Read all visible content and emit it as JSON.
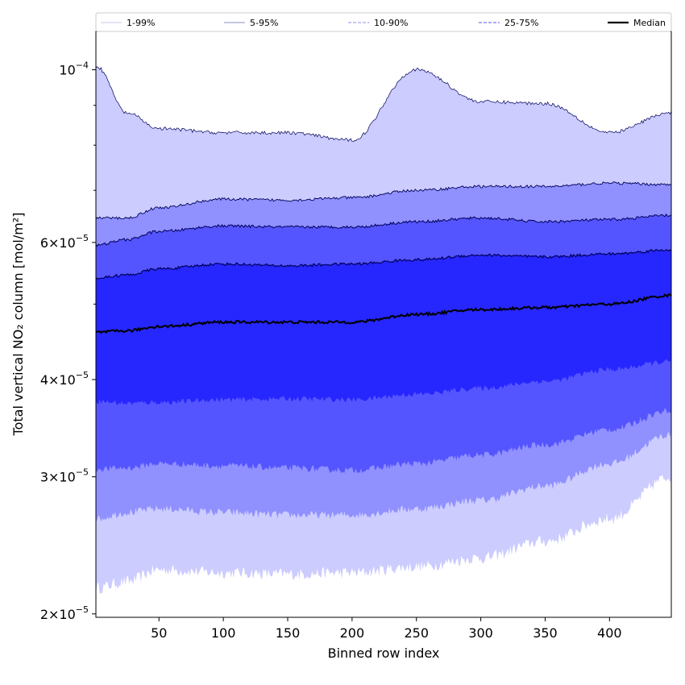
{
  "chart_data": {
    "type": "area",
    "title": "",
    "xlabel": "Binned row index",
    "ylabel": "Total vertical NO₂ column [mol/m²]",
    "xlim": [
      1,
      448
    ],
    "ylim": [
      1.98e-05,
      0.000112
    ],
    "yscale": "log",
    "x_ticks": [
      50,
      100,
      150,
      200,
      250,
      300,
      350,
      400
    ],
    "y_major_ticks": [
      {
        "value": 0.0001,
        "mantissa": "",
        "exp": "−4"
      },
      {
        "value": 6e-05,
        "mantissa": "6",
        "exp": "−5"
      },
      {
        "value": 4e-05,
        "mantissa": "4",
        "exp": "−5"
      },
      {
        "value": 3e-05,
        "mantissa": "3",
        "exp": "−5"
      },
      {
        "value": 2e-05,
        "mantissa": "2",
        "exp": "−5"
      }
    ],
    "y_minor_ticks": [
      9e-05,
      8e-05,
      7e-05,
      5e-05
    ],
    "legend_position": "top",
    "legend": [
      {
        "label": "1-99%",
        "color": "#c8c8e8",
        "style": "solid"
      },
      {
        "label": "5-95%",
        "color": "#8c8cc8",
        "style": "solid"
      },
      {
        "label": "10-90%",
        "color": "#8e8ef0",
        "style": "dashed"
      },
      {
        "label": "25-75%",
        "color": "#5656e8",
        "style": "dashed"
      },
      {
        "label": "Median",
        "color": "#000000",
        "style": "solid"
      }
    ],
    "band_colors": {
      "p5_95": "#ccccff",
      "p10_90": "#9090ff",
      "p25_75": "#5555ff",
      "p25_50": "#2626ff",
      "p50_75": "#2626ff",
      "median": "#000000",
      "edge": "#00005a"
    },
    "x_knots": [
      1,
      25,
      50,
      100,
      150,
      200,
      250,
      300,
      350,
      400,
      448
    ],
    "series": [
      {
        "name": "p5",
        "values": [
          2.16e-05,
          2.2e-05,
          2.28e-05,
          2.26e-05,
          2.25e-05,
          2.26e-05,
          2.3e-05,
          2.36e-05,
          2.48e-05,
          2.65e-05,
          3e-05
        ]
      },
      {
        "name": "p10",
        "values": [
          2.65e-05,
          2.7e-05,
          2.73e-05,
          2.7e-05,
          2.68e-05,
          2.68e-05,
          2.73e-05,
          2.8e-05,
          2.92e-05,
          3.12e-05,
          3.4e-05
        ]
      },
      {
        "name": "p25",
        "values": [
          3.07e-05,
          3.08e-05,
          3.12e-05,
          3.1e-05,
          3.08e-05,
          3.06e-05,
          3.12e-05,
          3.2e-05,
          3.3e-05,
          3.45e-05,
          3.65e-05
        ]
      },
      {
        "name": "p50_lower",
        "values": [
          3.75e-05,
          3.73e-05,
          3.74e-05,
          3.77e-05,
          3.78e-05,
          3.77e-05,
          3.83e-05,
          3.9e-05,
          3.98e-05,
          4.12e-05,
          4.22e-05
        ]
      },
      {
        "name": "median",
        "values": [
          4.6e-05,
          4.62e-05,
          4.68e-05,
          4.74e-05,
          4.74e-05,
          4.74e-05,
          4.85e-05,
          4.92e-05,
          4.95e-05,
          5e-05,
          5.13e-05
        ]
      },
      {
        "name": "p75",
        "values": [
          5.4e-05,
          5.45e-05,
          5.55e-05,
          5.63e-05,
          5.6e-05,
          5.63e-05,
          5.7e-05,
          5.78e-05,
          5.75e-05,
          5.8e-05,
          5.87e-05
        ]
      },
      {
        "name": "p90",
        "values": [
          5.95e-05,
          6.05e-05,
          6.2e-05,
          6.3e-05,
          6.28e-05,
          6.28e-05,
          6.38e-05,
          6.45e-05,
          6.38e-05,
          6.42e-05,
          6.5e-05
        ]
      },
      {
        "name": "p95",
        "values": [
          6.45e-05,
          6.45e-05,
          6.65e-05,
          6.82e-05,
          6.8e-05,
          6.85e-05,
          7e-05,
          7.08e-05,
          7.08e-05,
          7.15e-05,
          7.12e-05
        ]
      },
      {
        "name": "p99",
        "values": [
          0.000101,
          8.8e-05,
          8.4e-05,
          8.3e-05,
          8.3e-05,
          8.12e-05,
          0.0001,
          9.1e-05,
          9.05e-05,
          8.3e-05,
          8.8e-05
        ]
      }
    ]
  }
}
